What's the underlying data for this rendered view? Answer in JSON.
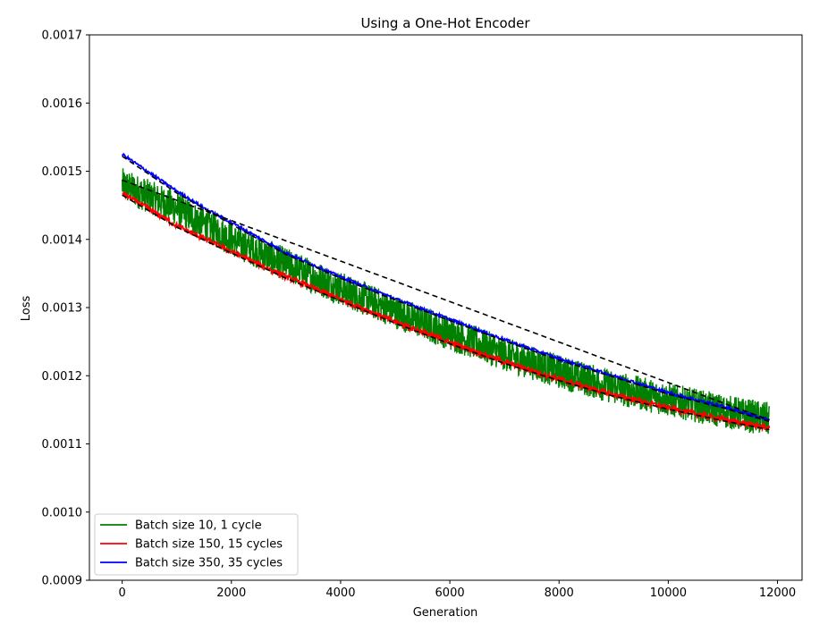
{
  "chart_data": {
    "type": "line",
    "title": "Using a One-Hot Encoder",
    "xlabel": "Generation",
    "ylabel": "Loss",
    "xlim": [
      -600,
      12450
    ],
    "ylim": [
      0.0009,
      0.0017
    ],
    "xticks": [
      0,
      2000,
      4000,
      6000,
      8000,
      10000,
      12000
    ],
    "yticks": [
      0.0009,
      0.001,
      0.0011,
      0.0012,
      0.0013,
      0.0014,
      0.0015,
      0.0016,
      0.0017
    ],
    "xtick_labels": [
      "0",
      "2000",
      "4000",
      "6000",
      "8000",
      "10000",
      "12000"
    ],
    "ytick_labels": [
      "0.0009",
      "0.0010",
      "0.0011",
      "0.0012",
      "0.0013",
      "0.0014",
      "0.0015",
      "0.0016",
      "0.0017"
    ],
    "grid": false,
    "legend_position": "lower-left",
    "series": [
      {
        "name": "Batch size 10, 1 cycle",
        "color": "#008000",
        "noise_amplitude": 2.5e-05,
        "x": [
          0,
          1000,
          2000,
          3000,
          4000,
          5000,
          6000,
          7000,
          8000,
          9000,
          10000,
          11000,
          11850
        ],
        "y": [
          0.00148,
          0.001445,
          0.0014,
          0.001363,
          0.001328,
          0.001294,
          0.001262,
          0.001232,
          0.001206,
          0.001183,
          0.001165,
          0.001148,
          0.001136
        ]
      },
      {
        "name": "Batch size 150, 15 cycles",
        "color": "#ff0000",
        "noise_amplitude": 4e-06,
        "x": [
          0,
          1000,
          2000,
          3000,
          4000,
          5000,
          6000,
          7000,
          8000,
          9000,
          10000,
          11000,
          11850
        ],
        "y": [
          0.001468,
          0.00142,
          0.001382,
          0.001345,
          0.001312,
          0.001279,
          0.001249,
          0.00122,
          0.001195,
          0.001172,
          0.001153,
          0.001136,
          0.001123
        ]
      },
      {
        "name": "Batch size 350, 35 cycles",
        "color": "#0000ff",
        "noise_amplitude": 2e-06,
        "x": [
          0,
          500,
          1000,
          1500,
          2000,
          3000,
          4000,
          5000,
          6000,
          7000,
          8000,
          9000,
          10000,
          11000,
          11850
        ],
        "y": [
          0.001525,
          0.001498,
          0.001471,
          0.001446,
          0.001425,
          0.00138,
          0.001345,
          0.001313,
          0.001283,
          0.001253,
          0.001225,
          0.0012,
          0.001175,
          0.001155,
          0.001135
        ]
      }
    ],
    "fit_lines": [
      {
        "style": "dashed",
        "color": "#000000",
        "x": [
          0,
          11850
        ],
        "y": [
          0.001487,
          0.001135
        ]
      },
      {
        "style": "dashed",
        "color": "#000000",
        "x": [
          0,
          1000,
          2000,
          3000,
          4000,
          5000,
          6000,
          7000,
          8000,
          9000,
          10000,
          11000,
          11850
        ],
        "y": [
          0.001465,
          0.001418,
          0.00138,
          0.001343,
          0.00131,
          0.001277,
          0.001247,
          0.001218,
          0.001193,
          0.00117,
          0.001151,
          0.001134,
          0.001121
        ]
      },
      {
        "style": "dashed",
        "color": "#000000",
        "x": [
          0,
          1000,
          2000,
          3000,
          4000,
          5000,
          6000,
          7000,
          8000,
          9000,
          10000,
          11000,
          11850
        ],
        "y": [
          0.001522,
          0.001468,
          0.001422,
          0.001378,
          0.001343,
          0.001311,
          0.001281,
          0.001251,
          0.001223,
          0.001198,
          0.001173,
          0.001153,
          0.001133
        ]
      }
    ]
  }
}
